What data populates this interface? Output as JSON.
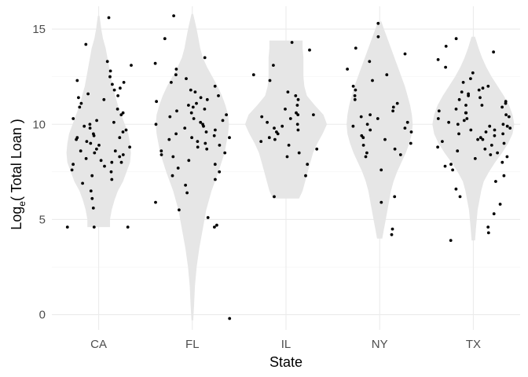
{
  "chart_data": {
    "type": "violin",
    "xlabel": "State",
    "ylabel": {
      "base": "Log",
      "subscript": "e",
      "rest": "( Total Loan )"
    },
    "categories": [
      "CA",
      "FL",
      "IL",
      "NY",
      "TX"
    ],
    "yticks": [
      0,
      5,
      10,
      15
    ],
    "ylim": [
      -0.8,
      16.2
    ],
    "grid": true,
    "colors": {
      "violin": "#e6e6e6",
      "points": "#000000",
      "grid": "#ebebeb"
    },
    "violins": [
      {
        "name": "CA",
        "min": 4.6,
        "max": 15.7,
        "halfwidths": [
          [
            4.6,
            0.13
          ],
          [
            5.0,
            0.13
          ],
          [
            5.5,
            0.15
          ],
          [
            6.0,
            0.18
          ],
          [
            6.5,
            0.22
          ],
          [
            7.0,
            0.28
          ],
          [
            7.5,
            0.32
          ],
          [
            8.0,
            0.36
          ],
          [
            8.5,
            0.37
          ],
          [
            9.0,
            0.36
          ],
          [
            9.5,
            0.34
          ],
          [
            10.0,
            0.3
          ],
          [
            10.5,
            0.26
          ],
          [
            11.0,
            0.22
          ],
          [
            11.5,
            0.19
          ],
          [
            12.0,
            0.16
          ],
          [
            12.5,
            0.14
          ],
          [
            13.0,
            0.12
          ],
          [
            13.5,
            0.1
          ],
          [
            14.0,
            0.08
          ],
          [
            14.5,
            0.05
          ],
          [
            15.0,
            0.03
          ],
          [
            15.7,
            0.01
          ]
        ],
        "points": [
          15.6,
          14.2,
          13.3,
          13.1,
          12.8,
          12.5,
          12.3,
          12.2,
          12.1,
          11.9,
          11.8,
          11.6,
          11.5,
          11.4,
          11.3,
          11.1,
          10.9,
          10.8,
          10.6,
          10.5,
          10.3,
          10.2,
          10.1,
          10.0,
          9.9,
          9.8,
          9.7,
          9.6,
          9.5,
          9.4,
          9.3,
          9.3,
          9.2,
          9.1,
          9.0,
          8.9,
          8.8,
          8.7,
          8.6,
          8.6,
          8.5,
          8.4,
          8.3,
          8.2,
          8.1,
          8.0,
          8.0,
          7.9,
          7.8,
          7.6,
          7.5,
          7.3,
          7.1,
          6.9,
          6.5,
          6.1,
          5.6,
          4.6,
          4.6,
          4.6
        ]
      },
      {
        "name": "FL",
        "min": -0.3,
        "max": 15.8,
        "halfwidths": [
          [
            -0.3,
            0.01
          ],
          [
            0.5,
            0.02
          ],
          [
            1.5,
            0.03
          ],
          [
            2.5,
            0.05
          ],
          [
            3.5,
            0.08
          ],
          [
            4.5,
            0.12
          ],
          [
            5.5,
            0.16
          ],
          [
            6.5,
            0.22
          ],
          [
            7.5,
            0.3
          ],
          [
            8.5,
            0.37
          ],
          [
            9.5,
            0.41
          ],
          [
            10.0,
            0.42
          ],
          [
            10.5,
            0.41
          ],
          [
            11.0,
            0.38
          ],
          [
            11.5,
            0.34
          ],
          [
            12.0,
            0.29
          ],
          [
            12.5,
            0.23
          ],
          [
            13.0,
            0.17
          ],
          [
            13.5,
            0.12
          ],
          [
            14.0,
            0.09
          ],
          [
            14.5,
            0.07
          ],
          [
            15.0,
            0.05
          ],
          [
            15.8,
            0.01
          ]
        ],
        "points": [
          15.7,
          14.5,
          13.5,
          13.2,
          12.9,
          12.6,
          12.4,
          12.2,
          12.0,
          11.8,
          11.7,
          11.5,
          11.4,
          11.3,
          11.2,
          11.1,
          11.0,
          10.9,
          10.8,
          10.7,
          10.6,
          10.5,
          10.4,
          10.3,
          10.2,
          10.1,
          10.0,
          10.0,
          9.9,
          9.8,
          9.7,
          9.6,
          9.5,
          9.4,
          9.3,
          9.3,
          9.2,
          9.1,
          9.0,
          8.9,
          8.8,
          8.7,
          8.6,
          8.5,
          8.4,
          8.3,
          8.1,
          7.9,
          7.7,
          7.5,
          7.3,
          7.1,
          6.8,
          6.4,
          5.9,
          5.5,
          5.1,
          4.7,
          4.6,
          -0.2
        ]
      },
      {
        "name": "IL",
        "min": 6.1,
        "max": 14.4,
        "halfwidths": [
          [
            6.1,
            0.15
          ],
          [
            6.5,
            0.19
          ],
          [
            7.0,
            0.22
          ],
          [
            7.5,
            0.25
          ],
          [
            8.0,
            0.28
          ],
          [
            8.5,
            0.31
          ],
          [
            9.0,
            0.36
          ],
          [
            9.5,
            0.42
          ],
          [
            10.0,
            0.47
          ],
          [
            10.5,
            0.43
          ],
          [
            11.0,
            0.33
          ],
          [
            11.5,
            0.24
          ],
          [
            12.0,
            0.21
          ],
          [
            12.5,
            0.2
          ],
          [
            13.0,
            0.2
          ],
          [
            13.5,
            0.2
          ],
          [
            14.0,
            0.19
          ],
          [
            14.4,
            0.19
          ]
        ],
        "points": [
          14.3,
          13.9,
          13.1,
          12.6,
          12.3,
          11.7,
          11.5,
          11.3,
          11.0,
          10.8,
          10.6,
          10.5,
          10.5,
          10.4,
          10.3,
          10.1,
          10.0,
          9.9,
          9.8,
          9.7,
          9.6,
          9.5,
          9.3,
          9.2,
          9.1,
          8.9,
          8.7,
          8.5,
          8.3,
          7.9,
          7.3,
          6.2
        ]
      },
      {
        "name": "NY",
        "min": 4.0,
        "max": 15.4,
        "halfwidths": [
          [
            4.0,
            0.03
          ],
          [
            4.5,
            0.05
          ],
          [
            5.0,
            0.07
          ],
          [
            5.5,
            0.09
          ],
          [
            6.0,
            0.11
          ],
          [
            6.5,
            0.13
          ],
          [
            7.0,
            0.16
          ],
          [
            7.5,
            0.2
          ],
          [
            8.0,
            0.25
          ],
          [
            8.5,
            0.3
          ],
          [
            9.0,
            0.34
          ],
          [
            9.5,
            0.37
          ],
          [
            10.0,
            0.38
          ],
          [
            10.5,
            0.37
          ],
          [
            11.0,
            0.35
          ],
          [
            11.5,
            0.32
          ],
          [
            12.0,
            0.29
          ],
          [
            12.5,
            0.25
          ],
          [
            13.0,
            0.21
          ],
          [
            13.5,
            0.17
          ],
          [
            14.0,
            0.13
          ],
          [
            14.5,
            0.09
          ],
          [
            15.0,
            0.05
          ],
          [
            15.4,
            0.02
          ]
        ],
        "points": [
          15.3,
          14.6,
          14.0,
          13.7,
          13.3,
          12.9,
          12.6,
          12.3,
          12.0,
          11.8,
          11.5,
          11.3,
          11.1,
          10.9,
          10.7,
          10.5,
          10.4,
          10.3,
          10.1,
          10.0,
          9.9,
          9.8,
          9.7,
          9.6,
          9.4,
          9.3,
          9.2,
          9.0,
          8.9,
          8.7,
          8.5,
          8.4,
          8.3,
          7.6,
          6.2,
          5.9,
          4.5,
          4.2
        ]
      },
      {
        "name": "TX",
        "min": 3.9,
        "max": 14.6,
        "halfwidths": [
          [
            3.9,
            0.02
          ],
          [
            4.5,
            0.03
          ],
          [
            5.0,
            0.04
          ],
          [
            5.5,
            0.05
          ],
          [
            6.0,
            0.07
          ],
          [
            6.5,
            0.09
          ],
          [
            7.0,
            0.12
          ],
          [
            7.5,
            0.18
          ],
          [
            8.0,
            0.25
          ],
          [
            8.5,
            0.33
          ],
          [
            9.0,
            0.4
          ],
          [
            9.5,
            0.45
          ],
          [
            10.0,
            0.47
          ],
          [
            10.5,
            0.45
          ],
          [
            11.0,
            0.41
          ],
          [
            11.5,
            0.35
          ],
          [
            12.0,
            0.28
          ],
          [
            12.5,
            0.21
          ],
          [
            13.0,
            0.15
          ],
          [
            13.5,
            0.1
          ],
          [
            14.0,
            0.06
          ],
          [
            14.6,
            0.02
          ]
        ],
        "points": [
          14.5,
          14.1,
          13.8,
          13.4,
          13.0,
          12.7,
          12.4,
          12.2,
          12.0,
          11.9,
          11.8,
          11.7,
          11.6,
          11.5,
          11.4,
          11.3,
          11.2,
          11.1,
          11.0,
          11.0,
          10.9,
          10.8,
          10.7,
          10.6,
          10.6,
          10.5,
          10.4,
          10.3,
          10.3,
          10.2,
          10.1,
          10.0,
          10.0,
          9.9,
          9.9,
          9.8,
          9.7,
          9.7,
          9.6,
          9.5,
          9.5,
          9.4,
          9.3,
          9.2,
          9.2,
          9.1,
          9.0,
          8.9,
          8.8,
          8.7,
          8.6,
          8.5,
          8.4,
          8.3,
          8.2,
          8.0,
          7.9,
          7.8,
          7.6,
          7.3,
          7.0,
          6.6,
          6.2,
          5.8,
          5.3,
          4.6,
          4.3,
          3.9
        ]
      }
    ]
  }
}
